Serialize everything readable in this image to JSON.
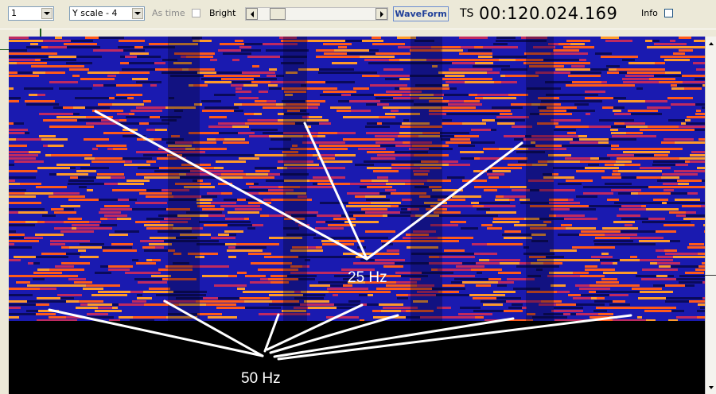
{
  "toolbar": {
    "channel_select": "1",
    "yscale_select": "Y scale - 4",
    "as_time_label": "As time",
    "bright_label": "Bright",
    "waveform_button": "WaveForm",
    "ts_label": "TS",
    "ts_value": "00:120.024.169",
    "info_label": "Info",
    "scroll_position": 0.15
  },
  "annotations": {
    "label_25": "25 Hz",
    "label_50": "50 Hz"
  },
  "colors": {
    "spectrogram_background": "#1a1ab0",
    "hot": "#ff8a1a",
    "warm": "#e03a2a",
    "window": "#ece9d8"
  },
  "icons": [
    "chevron-down-icon",
    "chevron-left-icon",
    "chevron-right-icon",
    "chevron-up-icon"
  ]
}
